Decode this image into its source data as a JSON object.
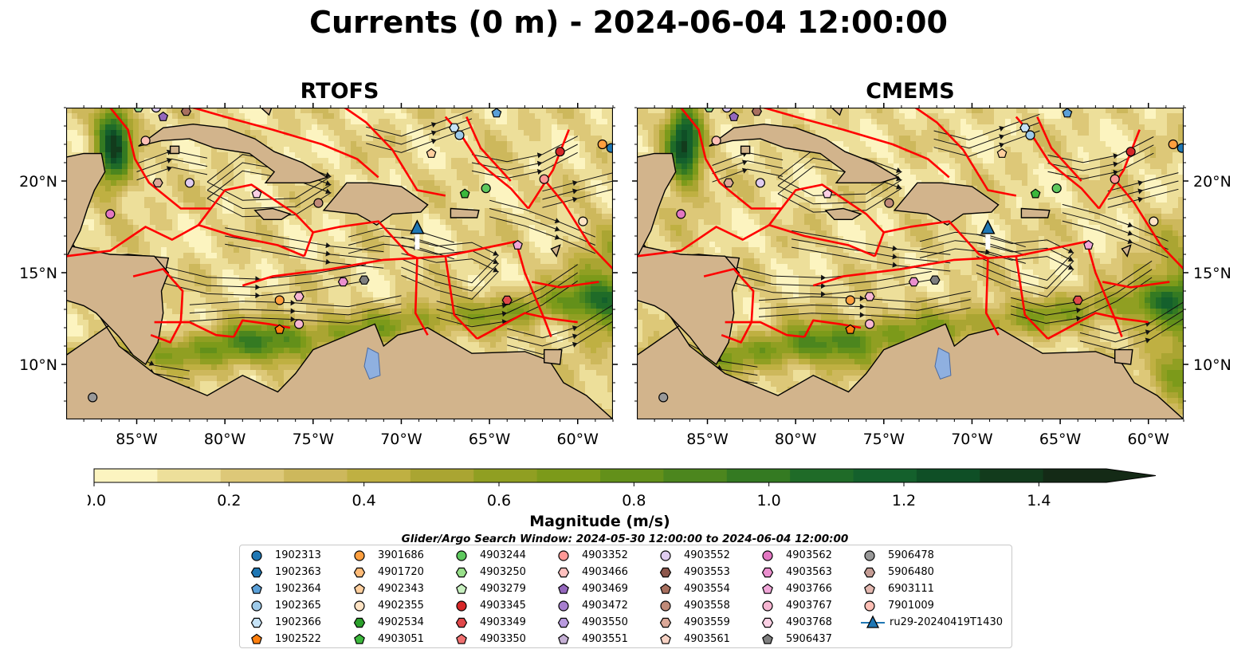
{
  "title": "Currents (0 m) - 2024-06-04 12:00:00",
  "panels": [
    {
      "title": "RTOFS"
    },
    {
      "title": "CMEMS"
    }
  ],
  "lon_ticks": [
    "85°W",
    "80°W",
    "75°W",
    "70°W",
    "65°W",
    "60°W"
  ],
  "lat_ticks": [
    "20°N",
    "15°N",
    "10°N"
  ],
  "map_extent": {
    "lon": [
      -89,
      -58
    ],
    "lat": [
      7,
      24
    ]
  },
  "colorbar": {
    "label": "Magnitude (m/s)",
    "ticks": [
      "0.0",
      "0.2",
      "0.4",
      "0.6",
      "0.8",
      "1.0",
      "1.2",
      "1.4"
    ],
    "range": [
      0,
      1.5
    ],
    "extend": "max",
    "colors": [
      "#fcf4c0",
      "#eddf9a",
      "#ddc878",
      "#cdb85c",
      "#bfb042",
      "#aaa532",
      "#909f22",
      "#7c9a1a",
      "#63901a",
      "#4c861e",
      "#347a22",
      "#1f6b28",
      "#14602c",
      "#0f4f26",
      "#123b1c",
      "#142a16"
    ]
  },
  "colors": {
    "land": "#d2b48c",
    "eez_lines": "#ff0000",
    "glider": "#1f77b4"
  },
  "legend": {
    "title": "Glider/Argo Search Window: 2024-05-30 12:00:00 to 2024-06-04 12:00:00",
    "items": [
      {
        "label": "1902313",
        "marker": "circle",
        "color": "#1f77b4"
      },
      {
        "label": "1902363",
        "marker": "hexagon",
        "color": "#1f77b4"
      },
      {
        "label": "1902364",
        "marker": "pentagon",
        "color": "#5ba0d8"
      },
      {
        "label": "1902365",
        "marker": "circle",
        "color": "#9ecae9"
      },
      {
        "label": "1902366",
        "marker": "hexagon",
        "color": "#c6e3f7"
      },
      {
        "label": "1902522",
        "marker": "pentagon",
        "color": "#ff7f0e"
      },
      {
        "label": "3901686",
        "marker": "circle",
        "color": "#ff9f3f"
      },
      {
        "label": "4901720",
        "marker": "hexagon",
        "color": "#ffbb78"
      },
      {
        "label": "4902343",
        "marker": "pentagon",
        "color": "#ffcf9e"
      },
      {
        "label": "4902355",
        "marker": "circle",
        "color": "#ffe3c4"
      },
      {
        "label": "4902534",
        "marker": "hexagon",
        "color": "#2ca02c"
      },
      {
        "label": "4903051",
        "marker": "pentagon",
        "color": "#3cb83c"
      },
      {
        "label": "4903244",
        "marker": "circle",
        "color": "#5ec95e"
      },
      {
        "label": "4903250",
        "marker": "hexagon",
        "color": "#98df8a"
      },
      {
        "label": "4903279",
        "marker": "pentagon",
        "color": "#c8f0c0"
      },
      {
        "label": "4903345",
        "marker": "circle",
        "color": "#d62728"
      },
      {
        "label": "4903349",
        "marker": "hexagon",
        "color": "#e0484a"
      },
      {
        "label": "4903350",
        "marker": "pentagon",
        "color": "#f07070"
      },
      {
        "label": "4903352",
        "marker": "circle",
        "color": "#ff9896"
      },
      {
        "label": "4903466",
        "marker": "hexagon",
        "color": "#ffc0be"
      },
      {
        "label": "4903469",
        "marker": "pentagon",
        "color": "#9467bd"
      },
      {
        "label": "4903472",
        "marker": "circle",
        "color": "#a77fcf"
      },
      {
        "label": "4903550",
        "marker": "hexagon",
        "color": "#b89ade"
      },
      {
        "label": "4903551",
        "marker": "pentagon",
        "color": "#c5b0d5"
      },
      {
        "label": "4903552",
        "marker": "circle",
        "color": "#e0ccf0"
      },
      {
        "label": "4903553",
        "marker": "hexagon",
        "color": "#8c564b"
      },
      {
        "label": "4903554",
        "marker": "pentagon",
        "color": "#a8705f"
      },
      {
        "label": "4903558",
        "marker": "circle",
        "color": "#c08a78"
      },
      {
        "label": "4903559",
        "marker": "hexagon",
        "color": "#dba898"
      },
      {
        "label": "4903561",
        "marker": "pentagon",
        "color": "#f7d2c4"
      },
      {
        "label": "4903562",
        "marker": "circle",
        "color": "#e377c2"
      },
      {
        "label": "4903563",
        "marker": "hexagon",
        "color": "#ea8fce"
      },
      {
        "label": "4903766",
        "marker": "pentagon",
        "color": "#f0a6d8"
      },
      {
        "label": "4903767",
        "marker": "circle",
        "color": "#f7b6d2"
      },
      {
        "label": "4903768",
        "marker": "hexagon",
        "color": "#fbd0e4"
      },
      {
        "label": "5906437",
        "marker": "pentagon",
        "color": "#7f7f7f"
      },
      {
        "label": "5906478",
        "marker": "circle",
        "color": "#999999"
      },
      {
        "label": "5906480",
        "marker": "hexagon",
        "color": "#c49c94"
      },
      {
        "label": "6903111",
        "marker": "pentagon",
        "color": "#e3b8b0"
      },
      {
        "label": "7901009",
        "marker": "circle",
        "color": "#ffbfb5"
      },
      {
        "label": "ru29-20240419T1430",
        "marker": "triangle-line",
        "color": "#1f77b4"
      }
    ]
  },
  "floats": [
    {
      "lon": -87.5,
      "lat": 8.2,
      "color": "#999999",
      "marker": "circle"
    },
    {
      "lon": -84.9,
      "lat": 24.0,
      "color": "#98df8a",
      "marker": "hexagon"
    },
    {
      "lon": -83.9,
      "lat": 24.0,
      "color": "#e0ccf0",
      "marker": "circle"
    },
    {
      "lon": -83.5,
      "lat": 23.5,
      "color": "#9467bd",
      "marker": "pentagon"
    },
    {
      "lon": -82.2,
      "lat": 23.8,
      "color": "#a8705f",
      "marker": "hexagon"
    },
    {
      "lon": -84.5,
      "lat": 22.2,
      "color": "#ffbfb5",
      "marker": "circle"
    },
    {
      "lon": -83.8,
      "lat": 19.9,
      "color": "#dba898",
      "marker": "hexagon"
    },
    {
      "lon": -82.0,
      "lat": 19.9,
      "color": "#e0ccf0",
      "marker": "circle"
    },
    {
      "lon": -78.2,
      "lat": 19.3,
      "color": "#fbd0e4",
      "marker": "pentagon"
    },
    {
      "lon": -86.5,
      "lat": 18.2,
      "color": "#e377c2",
      "marker": "circle"
    },
    {
      "lon": -74.7,
      "lat": 18.8,
      "color": "#c08a78",
      "marker": "circle"
    },
    {
      "lon": -76.9,
      "lat": 13.5,
      "color": "#ff9f3f",
      "marker": "circle"
    },
    {
      "lon": -76.9,
      "lat": 11.9,
      "color": "#ff7f0e",
      "marker": "pentagon"
    },
    {
      "lon": -75.8,
      "lat": 13.7,
      "color": "#f7b6d2",
      "marker": "hexagon"
    },
    {
      "lon": -75.8,
      "lat": 12.2,
      "color": "#f7b6d2",
      "marker": "circle"
    },
    {
      "lon": -73.3,
      "lat": 14.5,
      "color": "#ea8fce",
      "marker": "hexagon"
    },
    {
      "lon": -72.1,
      "lat": 14.6,
      "color": "#7f7f7f",
      "marker": "hexagon"
    },
    {
      "lon": -67.0,
      "lat": 22.9,
      "color": "#c6e3f7",
      "marker": "hexagon"
    },
    {
      "lon": -66.7,
      "lat": 22.5,
      "color": "#9ecae9",
      "marker": "circle"
    },
    {
      "lon": -64.6,
      "lat": 23.7,
      "color": "#5ba0d8",
      "marker": "pentagon"
    },
    {
      "lon": -68.3,
      "lat": 21.5,
      "color": "#ffcf9e",
      "marker": "pentagon"
    },
    {
      "lon": -66.4,
      "lat": 19.3,
      "color": "#3cb83c",
      "marker": "pentagon"
    },
    {
      "lon": -65.2,
      "lat": 19.6,
      "color": "#5ec95e",
      "marker": "circle"
    },
    {
      "lon": -61.0,
      "lat": 21.6,
      "color": "#d62728",
      "marker": "circle"
    },
    {
      "lon": -61.9,
      "lat": 20.1,
      "color": "#ff9896",
      "marker": "circle"
    },
    {
      "lon": -58.6,
      "lat": 22.0,
      "color": "#ff9f3f",
      "marker": "circle"
    },
    {
      "lon": -58.1,
      "lat": 21.8,
      "color": "#1f77b4",
      "marker": "circle"
    },
    {
      "lon": -59.7,
      "lat": 17.8,
      "color": "#ffe3c4",
      "marker": "circle"
    },
    {
      "lon": -63.4,
      "lat": 16.5,
      "color": "#f0a6d8",
      "marker": "pentagon"
    },
    {
      "lon": -64.0,
      "lat": 13.5,
      "color": "#e0484a",
      "marker": "hexagon"
    }
  ],
  "glider": {
    "lon": -69.1,
    "lat": 17.4
  }
}
